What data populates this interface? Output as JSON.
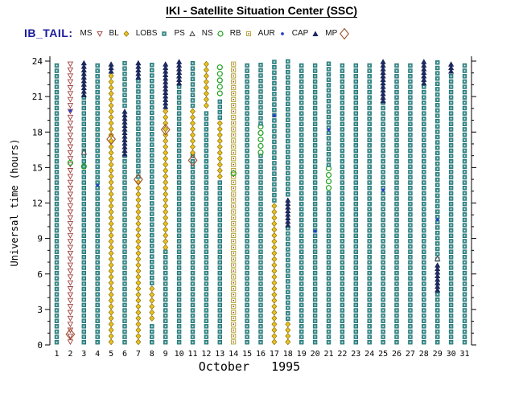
{
  "chart_data": {
    "type": "scatter",
    "title": "IKI - Satellite Situation Center (SSC)",
    "dataset_label": "IB_TAIL:",
    "xlabel": "October   1995",
    "ylabel": "Universal time (hours)",
    "xlim": [
      0.5,
      31.5
    ],
    "ylim": [
      0,
      24
    ],
    "yticks": [
      0,
      3,
      6,
      9,
      12,
      15,
      18,
      21,
      24
    ],
    "xticks": [
      1,
      2,
      3,
      4,
      5,
      6,
      7,
      8,
      9,
      10,
      11,
      12,
      13,
      14,
      15,
      16,
      17,
      18,
      19,
      20,
      21,
      22,
      23,
      24,
      25,
      26,
      27,
      28,
      29,
      30,
      31
    ],
    "grid": false,
    "legend_position": "top",
    "legend": [
      {
        "name": "MS",
        "shape": "triangle-down",
        "color": "#a04040",
        "fill": "none"
      },
      {
        "name": "BL",
        "shape": "diamond",
        "color": "#8a6d00",
        "fill": "#e8c224"
      },
      {
        "name": "LOBS",
        "shape": "square",
        "color": "#1f6b6b",
        "fill": "#3a8f8f"
      },
      {
        "name": "PS",
        "shape": "triangle-up",
        "color": "#404040",
        "fill": "none"
      },
      {
        "name": "NS",
        "shape": "circle",
        "color": "#21a121",
        "fill": "none"
      },
      {
        "name": "RB",
        "shape": "square-open",
        "color": "#a8a020",
        "fill": "none"
      },
      {
        "name": "AUR",
        "shape": "dot",
        "color": "#2840c8",
        "fill": "#2840c8"
      },
      {
        "name": "CAP",
        "shape": "triangle-up",
        "color": "#1c2b66",
        "fill": "#1c2b66"
      },
      {
        "name": "MP",
        "shape": "diamond-large",
        "color": "#a0522d",
        "fill": "none"
      }
    ],
    "columns": [
      {
        "day": 1,
        "segments": [
          [
            0,
            24,
            "LOBS"
          ]
        ]
      },
      {
        "day": 2,
        "segments": [
          [
            0,
            24,
            "MS"
          ]
        ]
      },
      {
        "day": 3,
        "segments": [
          [
            0,
            21,
            "LOBS"
          ],
          [
            21,
            24,
            "CAP"
          ]
        ]
      },
      {
        "day": 4,
        "segments": [
          [
            0,
            24,
            "LOBS"
          ]
        ]
      },
      {
        "day": 5,
        "segments": [
          [
            0,
            23,
            "BL"
          ],
          [
            23,
            24,
            "CAP"
          ]
        ]
      },
      {
        "day": 6,
        "segments": [
          [
            0,
            16,
            "LOBS"
          ],
          [
            16,
            20,
            "CAP"
          ],
          [
            20,
            24,
            "LOBS"
          ]
        ]
      },
      {
        "day": 7,
        "segments": [
          [
            0,
            14,
            "BL"
          ],
          [
            14,
            22.5,
            "LOBS"
          ],
          [
            22.5,
            24,
            "CAP"
          ]
        ]
      },
      {
        "day": 8,
        "segments": [
          [
            0,
            2,
            "LOBS"
          ],
          [
            2,
            5,
            "BL"
          ],
          [
            5,
            24,
            "LOBS"
          ]
        ]
      },
      {
        "day": 9,
        "segments": [
          [
            0,
            8,
            "LOBS"
          ],
          [
            8,
            20,
            "BL"
          ],
          [
            20,
            24,
            "CAP"
          ]
        ]
      },
      {
        "day": 10,
        "segments": [
          [
            0,
            22,
            "LOBS"
          ],
          [
            22,
            24,
            "CAP"
          ]
        ]
      },
      {
        "day": 11,
        "segments": [
          [
            0,
            16,
            "LOBS"
          ],
          [
            16,
            20,
            "BL"
          ],
          [
            20,
            24,
            "LOBS"
          ]
        ]
      },
      {
        "day": 12,
        "segments": [
          [
            0,
            20,
            "LOBS"
          ],
          [
            20,
            24,
            "BL"
          ]
        ]
      },
      {
        "day": 13,
        "segments": [
          [
            0,
            14,
            "LOBS"
          ],
          [
            14,
            19,
            "BL"
          ],
          [
            19,
            21,
            "LOBS"
          ],
          [
            21,
            24,
            "NS"
          ]
        ]
      },
      {
        "day": 14,
        "segments": [
          [
            0,
            24,
            "RB"
          ]
        ]
      },
      {
        "day": 15,
        "segments": [
          [
            0,
            24,
            "LOBS"
          ]
        ]
      },
      {
        "day": 16,
        "segments": [
          [
            0,
            16,
            "LOBS"
          ],
          [
            16,
            18.5,
            "NS"
          ],
          [
            18.5,
            24,
            "LOBS"
          ]
        ]
      },
      {
        "day": 17,
        "segments": [
          [
            0,
            12,
            "BL"
          ],
          [
            12,
            24,
            "LOBS"
          ]
        ]
      },
      {
        "day": 18,
        "segments": [
          [
            0,
            2,
            "BL"
          ],
          [
            2,
            10,
            "LOBS"
          ],
          [
            10,
            12.5,
            "CAP"
          ],
          [
            12.5,
            24,
            "LOBS"
          ]
        ]
      },
      {
        "day": 19,
        "segments": [
          [
            0,
            24,
            "LOBS"
          ]
        ]
      },
      {
        "day": 20,
        "segments": [
          [
            0,
            24,
            "LOBS"
          ]
        ]
      },
      {
        "day": 21,
        "segments": [
          [
            0,
            13,
            "LOBS"
          ],
          [
            13,
            15,
            "NS"
          ],
          [
            15,
            24,
            "LOBS"
          ]
        ]
      },
      {
        "day": 22,
        "segments": [
          [
            0,
            24,
            "LOBS"
          ]
        ]
      },
      {
        "day": 23,
        "segments": [
          [
            0,
            24,
            "LOBS"
          ]
        ]
      },
      {
        "day": 24,
        "segments": [
          [
            0,
            24,
            "LOBS"
          ]
        ]
      },
      {
        "day": 25,
        "segments": [
          [
            0,
            20.5,
            "LOBS"
          ],
          [
            20.5,
            24,
            "CAP"
          ]
        ]
      },
      {
        "day": 26,
        "segments": [
          [
            0,
            24,
            "LOBS"
          ]
        ]
      },
      {
        "day": 27,
        "segments": [
          [
            0,
            24,
            "LOBS"
          ]
        ]
      },
      {
        "day": 28,
        "segments": [
          [
            0,
            22,
            "LOBS"
          ],
          [
            22,
            24,
            "CAP"
          ]
        ]
      },
      {
        "day": 29,
        "segments": [
          [
            0,
            4.5,
            "LOBS"
          ],
          [
            4.5,
            7,
            "CAP"
          ],
          [
            7,
            24,
            "LOBS"
          ]
        ]
      },
      {
        "day": 30,
        "segments": [
          [
            0,
            23,
            "LOBS"
          ],
          [
            23,
            24,
            "CAP"
          ]
        ]
      },
      {
        "day": 31,
        "segments": [
          [
            0,
            24,
            "LOBS"
          ]
        ]
      }
    ],
    "events": [
      {
        "day": 2,
        "hour": 0.9,
        "symbol": "MP"
      },
      {
        "day": 5,
        "hour": 17.4,
        "symbol": "MP"
      },
      {
        "day": 7,
        "hour": 14.0,
        "symbol": "MP"
      },
      {
        "day": 9,
        "hour": 18.2,
        "symbol": "MP"
      },
      {
        "day": 11,
        "hour": 15.6,
        "symbol": "MP"
      },
      {
        "day": 2,
        "hour": 15.4,
        "symbol": "NS"
      },
      {
        "day": 3,
        "hour": 15.1,
        "symbol": "NS"
      },
      {
        "day": 14,
        "hour": 14.5,
        "symbol": "NS"
      },
      {
        "day": 3,
        "hour": 16.3,
        "symbol": "PS"
      },
      {
        "day": 29,
        "hour": 7.3,
        "symbol": "PS"
      },
      {
        "day": 2,
        "hour": 19.8,
        "symbol": "AUR"
      },
      {
        "day": 4,
        "hour": 13.5,
        "symbol": "AUR"
      },
      {
        "day": 17,
        "hour": 19.4,
        "symbol": "AUR"
      },
      {
        "day": 20,
        "hour": 9.6,
        "symbol": "AUR"
      },
      {
        "day": 21,
        "hour": 18.2,
        "symbol": "AUR"
      },
      {
        "day": 25,
        "hour": 13.1,
        "symbol": "AUR"
      },
      {
        "day": 29,
        "hour": 10.6,
        "symbol": "AUR"
      }
    ]
  }
}
